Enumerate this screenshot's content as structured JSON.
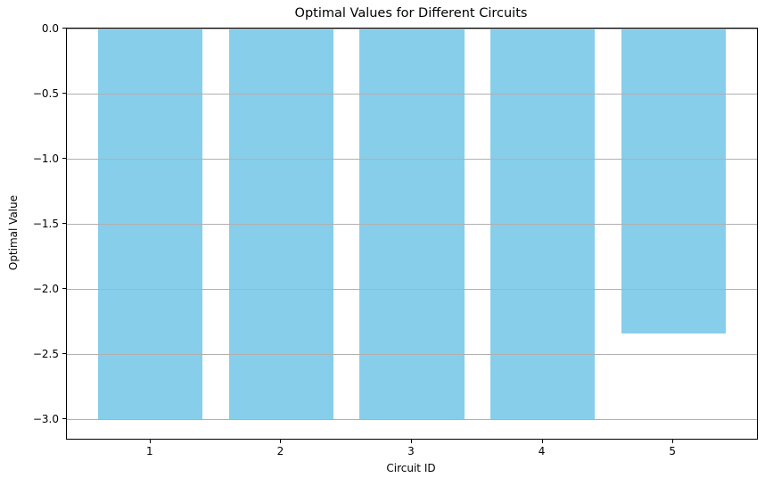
{
  "figure": {
    "background": "#ffffff",
    "text_color": "#000000"
  },
  "chart_data": {
    "type": "bar",
    "title": "Optimal Values for Different Circuits",
    "xlabel": "Circuit ID",
    "ylabel": "Optimal Value",
    "categories": [
      "1",
      "2",
      "3",
      "4",
      "5"
    ],
    "x_positions": [
      1,
      2,
      3,
      4,
      5
    ],
    "values": [
      -3.0,
      -3.0,
      -3.0,
      -3.0,
      -2.34
    ],
    "bar_color": "#87CEEB",
    "bar_width": 0.8,
    "xlim": [
      0.36,
      5.64
    ],
    "ylim": [
      -3.15,
      0.0
    ],
    "yticks": [
      0.0,
      -0.5,
      -1.0,
      -1.5,
      -2.0,
      -2.5,
      -3.0
    ],
    "ytick_labels": [
      "0.0",
      "−0.5",
      "−1.0",
      "−1.5",
      "−2.0",
      "−2.5",
      "−3.0"
    ],
    "xtick_labels": [
      "1",
      "2",
      "3",
      "4",
      "5"
    ],
    "grid": "y",
    "grid_color": "#b0b0b0",
    "grid_over_bars": true,
    "axis_color": "#000000",
    "legend": "none"
  }
}
